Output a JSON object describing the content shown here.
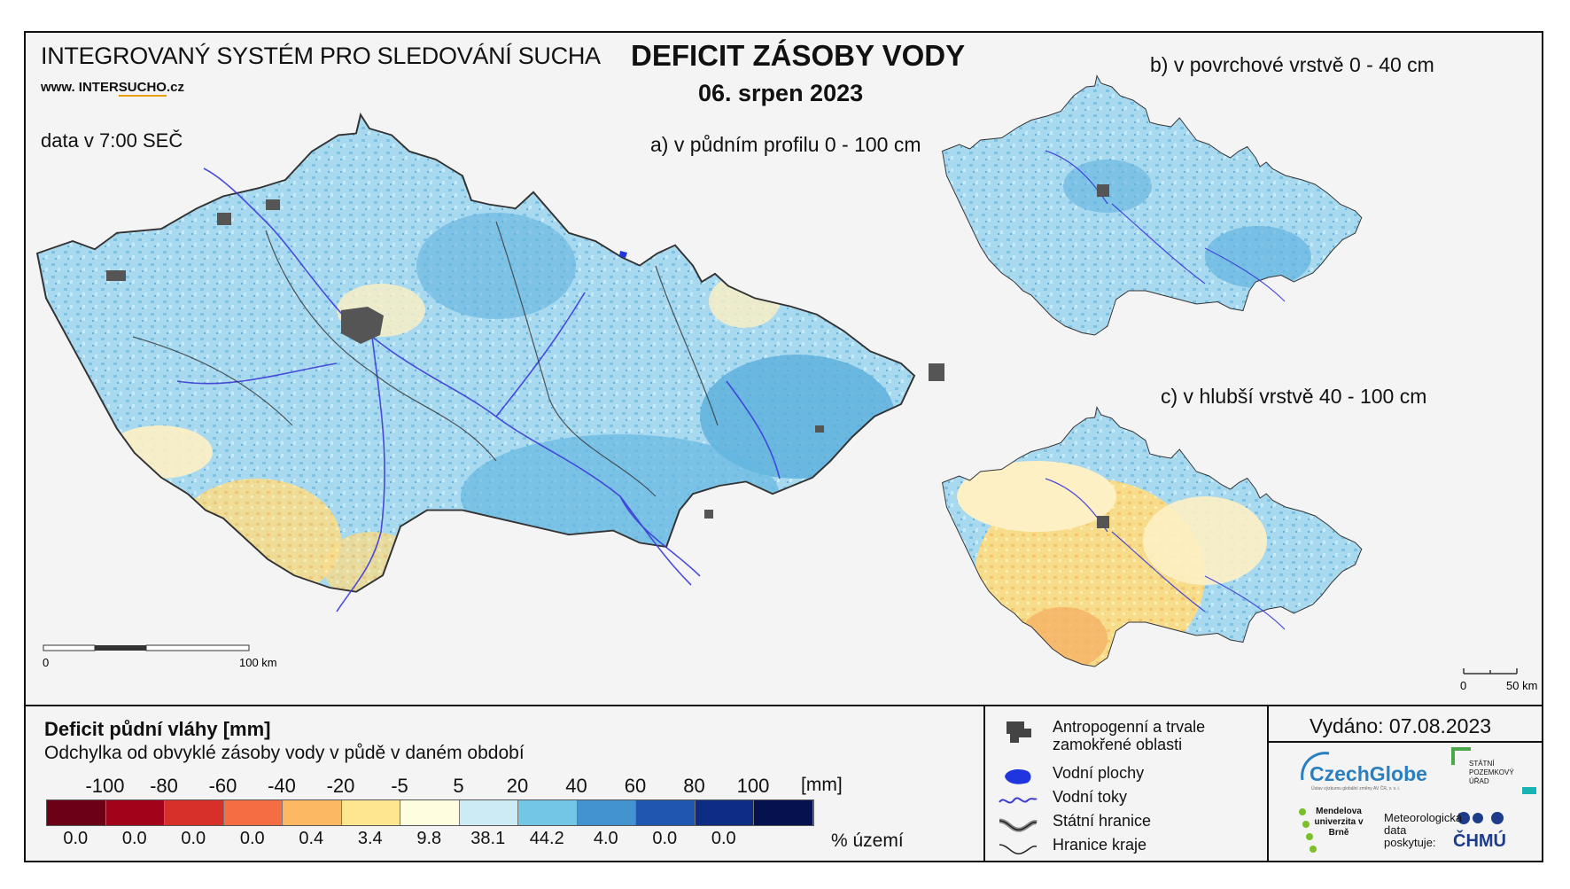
{
  "header": {
    "system_title": "INTEGROVANÝ SYSTÉM PRO SLEDOVÁNÍ SUCHA",
    "website_prefix": "www. INTER",
    "website_highlight": "SUCHO",
    "website_suffix": ".cz",
    "data_time": "data v 7:00 SEČ",
    "main_title": "DEFICIT ZÁSOBY VODY",
    "date": "06. srpen 2023"
  },
  "maps": {
    "a": {
      "title": "a) v půdním profilu 0 - 100 cm",
      "scale_start": "0",
      "scale_end": "100 km"
    },
    "b": {
      "title": "b) v povrchové vrstvě 0 - 40 cm"
    },
    "c": {
      "title": "c) v hlubší vrstvě 40 - 100 cm",
      "scale_start": "0",
      "scale_end": "50 km"
    }
  },
  "legend": {
    "title": "Deficit půdní vláhy  [mm]",
    "subtitle": "Odchylka od obvyklé zásoby vody v půdě v daném období",
    "ticks": [
      "-100",
      "-80",
      "-60",
      "-40",
      "-20",
      "-5",
      "5",
      "20",
      "40",
      "60",
      "80",
      "100"
    ],
    "unit": "[mm]",
    "colors": [
      "#6b0017",
      "#a3021b",
      "#d7302a",
      "#f46d43",
      "#fdb863",
      "#fee590",
      "#fffde0",
      "#cdebf5",
      "#74c6e6",
      "#4393d0",
      "#2156b0",
      "#0d2c84",
      "#06124f"
    ],
    "percentages": [
      "0.0",
      "0.0",
      "0.0",
      "0.0",
      "0.4",
      "3.4",
      "9.8",
      "38.1",
      "44.2",
      "4.0",
      "0.0",
      "0.0"
    ],
    "percent_unit": "% území"
  },
  "symbols": [
    {
      "label": "Antropogenní a trvale zamokřené oblasti",
      "icon": "urban-area-icon"
    },
    {
      "label": "Vodní plochy",
      "icon": "water-body-icon"
    },
    {
      "label": "Vodní toky",
      "icon": "river-icon"
    },
    {
      "label": "Státní hranice",
      "icon": "state-border-icon"
    },
    {
      "label": "Hranice kraje",
      "icon": "region-border-icon"
    }
  ],
  "issued": "Vydáno: 07.08.2023",
  "logos": {
    "czechglobe": "CzechGlobe",
    "czechglobe_sub": "Ústav výzkumu globální změny AV ČR, v. v. i.",
    "spu": "STÁTNÍ POZEMKOVÝ ÚŘAD",
    "mendel": "Mendelova univerzita v Brně",
    "meteo": "Meteorologická data poskytuje:",
    "chmu": "ČHMÚ"
  }
}
